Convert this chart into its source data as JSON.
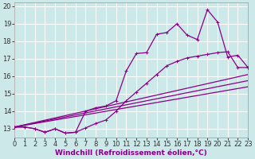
{
  "xlabel": "Windchill (Refroidissement éolien,°C)",
  "bg_color": "#cce8e8",
  "line_color": "#880088",
  "xmin": 0,
  "xmax": 23,
  "ymin": 12.5,
  "ymax": 20.2,
  "x_ticks": [
    0,
    1,
    2,
    3,
    4,
    5,
    6,
    7,
    8,
    9,
    10,
    11,
    12,
    13,
    14,
    15,
    16,
    17,
    18,
    19,
    20,
    21,
    22,
    23
  ],
  "y_ticks": [
    13,
    14,
    15,
    16,
    17,
    18,
    19,
    20
  ],
  "curve1_x": [
    0,
    1,
    2,
    3,
    4,
    5,
    6,
    7,
    8,
    9,
    10,
    11,
    12,
    13,
    14,
    15,
    16,
    17,
    18,
    19,
    20,
    21,
    22,
    23
  ],
  "curve1_y": [
    13.1,
    13.1,
    13.0,
    12.8,
    13.0,
    12.75,
    12.8,
    14.0,
    14.2,
    14.3,
    14.6,
    16.3,
    17.3,
    17.35,
    18.4,
    18.5,
    19.0,
    18.35,
    18.1,
    19.8,
    19.1,
    17.1,
    17.2,
    16.5
  ],
  "curve2_x": [
    0,
    1,
    2,
    3,
    4,
    5,
    6,
    7,
    8,
    9,
    10,
    11,
    12,
    13,
    14,
    15,
    16,
    17,
    18,
    19,
    20,
    21,
    22,
    23
  ],
  "curve2_y": [
    13.1,
    13.1,
    13.0,
    12.8,
    13.0,
    12.75,
    12.8,
    13.05,
    13.3,
    13.5,
    14.0,
    14.6,
    15.1,
    15.6,
    16.1,
    16.6,
    16.85,
    17.05,
    17.15,
    17.25,
    17.35,
    17.4,
    16.5,
    16.5
  ],
  "diag_lines": [
    {
      "x0": 0,
      "y0": 13.1,
      "x1": 23,
      "y1": 16.1
    },
    {
      "x0": 0,
      "y0": 13.1,
      "x1": 23,
      "y1": 15.75
    },
    {
      "x0": 0,
      "y0": 13.1,
      "x1": 23,
      "y1": 15.4
    }
  ],
  "font_size_ticks": 6,
  "font_size_label": 6.5
}
